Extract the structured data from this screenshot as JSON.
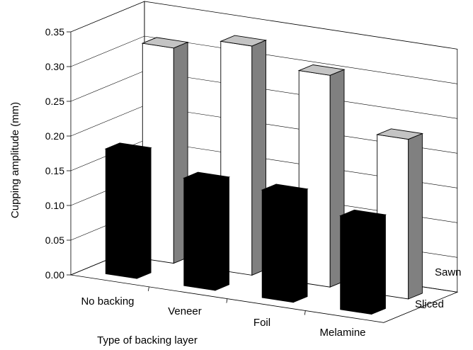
{
  "chart_data": {
    "type": "bar",
    "title": "",
    "xlabel": "Type of backing layer",
    "ylabel": "Cupping amplitude (mm)",
    "ylim": [
      0,
      0.35
    ],
    "yticks": [
      "0.00",
      "0.05",
      "0.10",
      "0.15",
      "0.20",
      "0.25",
      "0.30",
      "0.35"
    ],
    "categories": [
      "No backing",
      "Veneer",
      "Foil",
      "Melamine"
    ],
    "series": [
      {
        "name": "Sliced",
        "values": [
          0.18,
          0.155,
          0.155,
          0.135
        ],
        "color": "#000000"
      },
      {
        "name": "Sawn",
        "values": [
          0.31,
          0.33,
          0.305,
          0.23
        ],
        "color": "#ffffff"
      }
    ],
    "grid": true,
    "three_d": true
  }
}
